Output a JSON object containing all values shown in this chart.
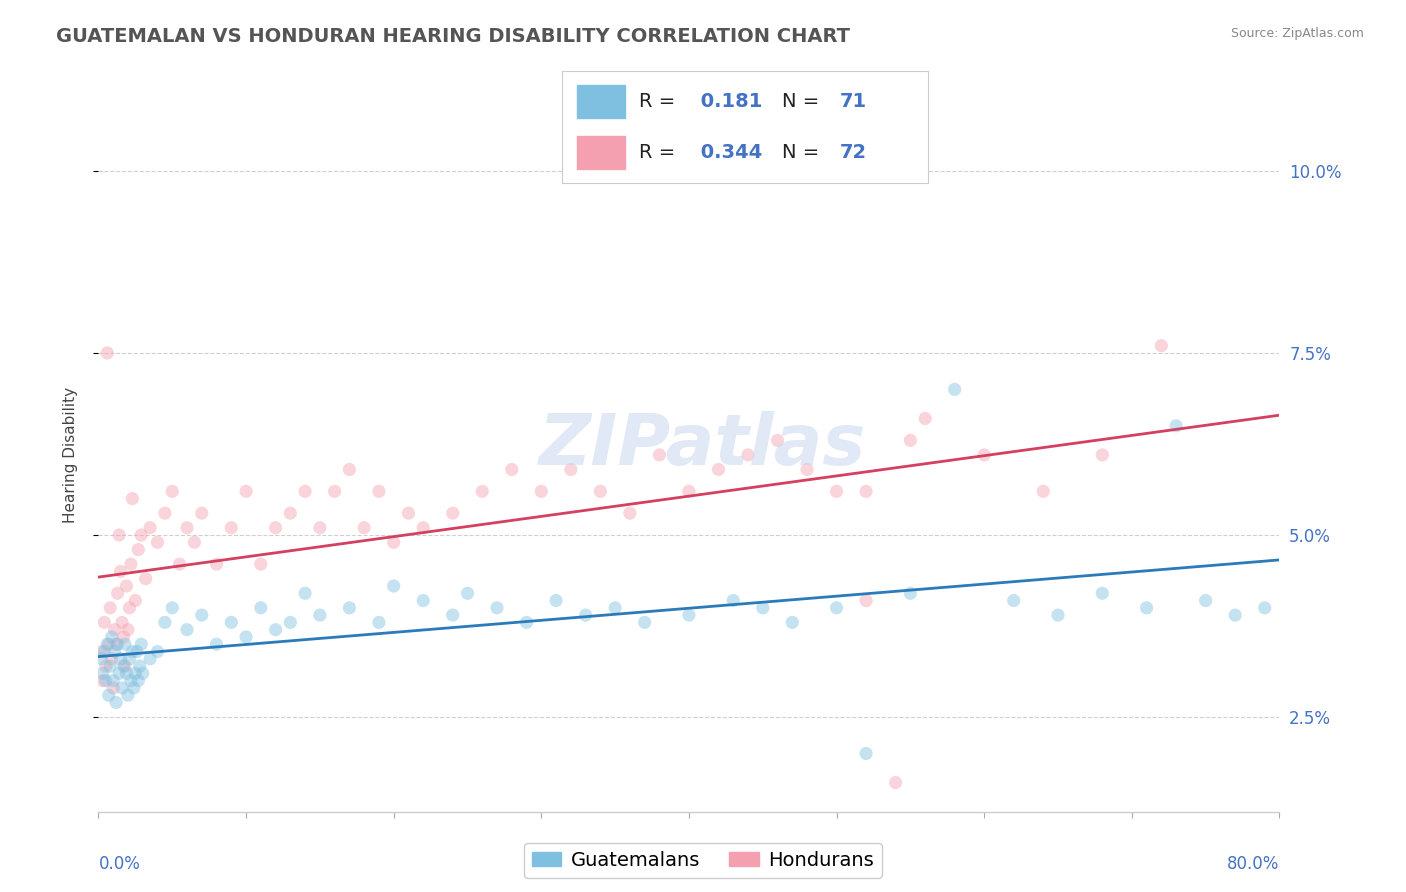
{
  "title": "GUATEMALAN VS HONDURAN HEARING DISABILITY CORRELATION CHART",
  "source": "Source: ZipAtlas.com",
  "ylabel": "Hearing Disability",
  "xlim": [
    0.0,
    80.0
  ],
  "ylim": [
    1.2,
    11.0
  ],
  "yticks": [
    2.5,
    5.0,
    7.5,
    10.0
  ],
  "ytick_labels": [
    "2.5%",
    "5.0%",
    "7.5%",
    "10.0%"
  ],
  "guatemalan_color": "#7fbfdf",
  "honduran_color": "#f4a0b0",
  "guatemalan_line_color": "#2b7bba",
  "honduran_line_color": "#d44060",
  "R_guatemalan": 0.181,
  "N_guatemalan": 71,
  "R_honduran": 0.344,
  "N_honduran": 72,
  "legend_label_guatemalan": "Guatemalans",
  "legend_label_honduran": "Hondurans",
  "guatemalan_x": [
    0.2,
    0.3,
    0.4,
    0.5,
    0.6,
    0.7,
    0.8,
    0.9,
    1.0,
    1.1,
    1.2,
    1.3,
    1.4,
    1.5,
    1.6,
    1.7,
    1.8,
    1.9,
    2.0,
    2.1,
    2.2,
    2.3,
    2.4,
    2.5,
    2.6,
    2.7,
    2.8,
    2.9,
    3.0,
    3.5,
    4.0,
    4.5,
    5.0,
    6.0,
    7.0,
    8.0,
    9.0,
    10.0,
    11.0,
    12.0,
    13.0,
    14.0,
    15.0,
    17.0,
    19.0,
    20.0,
    22.0,
    24.0,
    25.0,
    27.0,
    29.0,
    31.0,
    33.0,
    35.0,
    37.0,
    40.0,
    43.0,
    45.0,
    47.0,
    50.0,
    52.0,
    55.0,
    58.0,
    62.0,
    65.0,
    68.0,
    71.0,
    73.0,
    75.0,
    77.0,
    79.0
  ],
  "guatemalan_y": [
    3.3,
    3.1,
    3.4,
    3.0,
    3.5,
    2.8,
    3.2,
    3.6,
    3.0,
    3.4,
    2.7,
    3.5,
    3.1,
    3.3,
    2.9,
    3.2,
    3.5,
    3.1,
    2.8,
    3.3,
    3.0,
    3.4,
    2.9,
    3.1,
    3.4,
    3.0,
    3.2,
    3.5,
    3.1,
    3.3,
    3.4,
    3.8,
    4.0,
    3.7,
    3.9,
    3.5,
    3.8,
    3.6,
    4.0,
    3.7,
    3.8,
    4.2,
    3.9,
    4.0,
    3.8,
    4.3,
    4.1,
    3.9,
    4.2,
    4.0,
    3.8,
    4.1,
    3.9,
    4.0,
    3.8,
    3.9,
    4.1,
    4.0,
    3.8,
    4.0,
    2.0,
    4.2,
    7.0,
    4.1,
    3.9,
    4.2,
    4.0,
    6.5,
    4.1,
    3.9,
    4.0
  ],
  "honduran_x": [
    0.2,
    0.3,
    0.4,
    0.5,
    0.6,
    0.7,
    0.8,
    0.9,
    1.0,
    1.1,
    1.2,
    1.3,
    1.4,
    1.5,
    1.6,
    1.7,
    1.8,
    1.9,
    2.0,
    2.1,
    2.2,
    2.3,
    2.5,
    2.7,
    2.9,
    3.2,
    3.5,
    4.0,
    4.5,
    5.0,
    5.5,
    6.0,
    6.5,
    7.0,
    8.0,
    9.0,
    10.0,
    11.0,
    12.0,
    13.0,
    14.0,
    15.0,
    16.0,
    17.0,
    18.0,
    19.0,
    20.0,
    21.0,
    22.0,
    24.0,
    26.0,
    28.0,
    30.0,
    32.0,
    34.0,
    36.0,
    38.0,
    40.0,
    42.0,
    44.0,
    46.0,
    48.0,
    50.0,
    52.0,
    54.0,
    56.0,
    60.0,
    64.0,
    68.0,
    52.0,
    55.0,
    72.0
  ],
  "honduran_y": [
    3.4,
    3.0,
    3.8,
    3.2,
    7.5,
    3.5,
    4.0,
    3.3,
    2.9,
    3.7,
    3.5,
    4.2,
    5.0,
    4.5,
    3.8,
    3.6,
    3.2,
    4.3,
    3.7,
    4.0,
    4.6,
    5.5,
    4.1,
    4.8,
    5.0,
    4.4,
    5.1,
    4.9,
    5.3,
    5.6,
    4.6,
    5.1,
    4.9,
    5.3,
    4.6,
    5.1,
    5.6,
    4.6,
    5.1,
    5.3,
    5.6,
    5.1,
    5.6,
    5.9,
    5.1,
    5.6,
    4.9,
    5.3,
    5.1,
    5.3,
    5.6,
    5.9,
    5.6,
    5.9,
    5.6,
    5.3,
    6.1,
    5.6,
    5.9,
    6.1,
    6.3,
    5.9,
    5.6,
    4.1,
    1.6,
    6.6,
    6.1,
    5.6,
    6.1,
    5.6,
    6.3,
    7.6
  ],
  "background_color": "#ffffff",
  "grid_color": "#d0d0d0",
  "marker_size": 90,
  "marker_alpha": 0.45,
  "title_fontsize": 14,
  "axis_label_fontsize": 11,
  "tick_fontsize": 12,
  "legend_fontsize": 14
}
